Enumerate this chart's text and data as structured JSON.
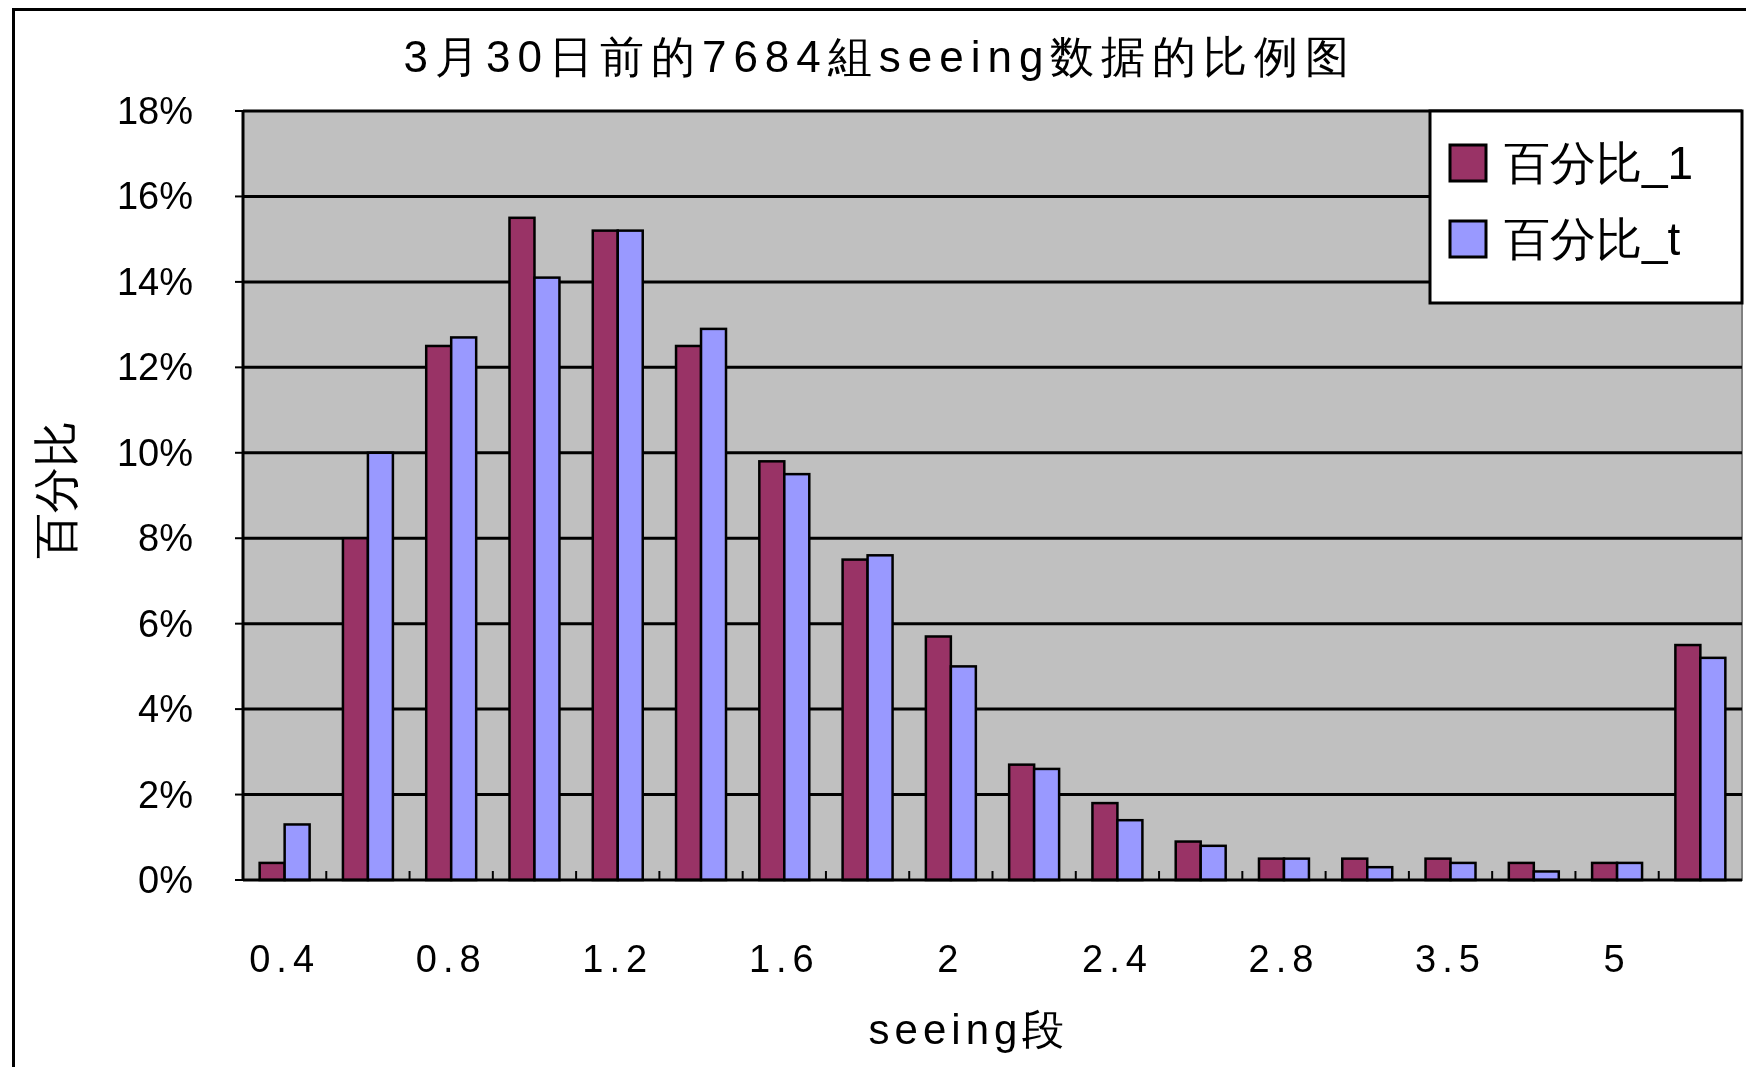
{
  "chart_data": {
    "type": "bar",
    "title": "3月30日前的7684組seeing数据的比例图",
    "xlabel": "seeing段",
    "ylabel": "百分比",
    "categories": [
      "0.4",
      null,
      "0.8",
      null,
      "1.2",
      null,
      "1.6",
      null,
      "2",
      null,
      "2.4",
      null,
      "2.8",
      null,
      "3.5",
      null,
      "5",
      null
    ],
    "series": [
      {
        "name": "百分比_1",
        "color": "#993366",
        "values": [
          0.4,
          8.0,
          12.5,
          15.5,
          15.2,
          12.5,
          9.8,
          7.5,
          5.7,
          2.7,
          1.8,
          0.9,
          0.5,
          0.5,
          0.5,
          0.4,
          0.4,
          5.5
        ]
      },
      {
        "name": "百分比_t",
        "color": "#9999ff",
        "values": [
          1.3,
          10.0,
          12.7,
          14.1,
          15.2,
          12.9,
          9.5,
          7.6,
          5.0,
          2.6,
          1.4,
          0.8,
          0.5,
          0.3,
          0.4,
          0.2,
          0.4,
          5.2
        ]
      }
    ],
    "ylim": [
      0,
      18
    ],
    "yticks": [
      {
        "value": 0,
        "label": "0%"
      },
      {
        "value": 2,
        "label": "2%"
      },
      {
        "value": 4,
        "label": "4%"
      },
      {
        "value": 6,
        "label": "6%"
      },
      {
        "value": 8,
        "label": "8%"
      },
      {
        "value": 10,
        "label": "10%"
      },
      {
        "value": 12,
        "label": "12%"
      },
      {
        "value": 14,
        "label": "14%"
      },
      {
        "value": 16,
        "label": "16%"
      },
      {
        "value": 18,
        "label": "18%"
      }
    ],
    "grid": "y",
    "legend": "top right"
  }
}
